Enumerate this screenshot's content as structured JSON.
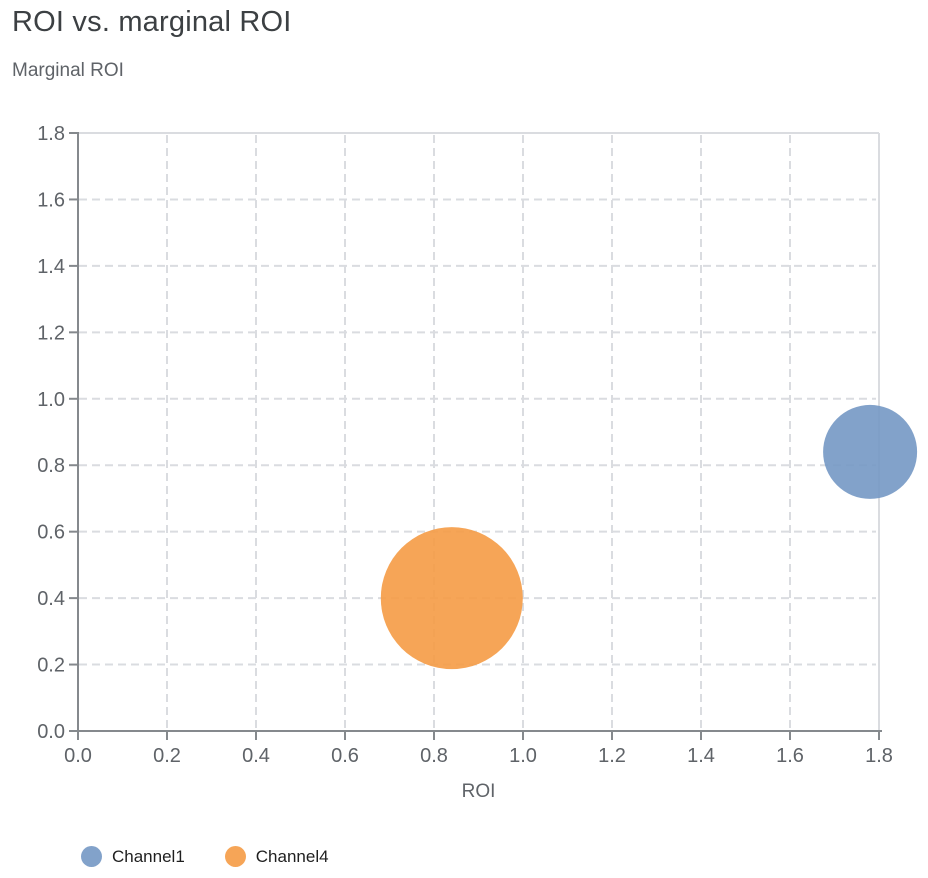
{
  "header": {
    "title": "ROI vs. marginal ROI"
  },
  "chart_data": {
    "type": "bubble",
    "title": "ROI vs. marginal ROI",
    "xlabel": "ROI",
    "ylabel": "Marginal ROI",
    "xlim": [
      0,
      1.8
    ],
    "ylim": [
      0,
      1.8
    ],
    "ticks": {
      "values": [
        0,
        0.2,
        0.4,
        0.6,
        0.8,
        1.0,
        1.2,
        1.4,
        1.6,
        1.8
      ],
      "labels": [
        "0.0",
        "0.2",
        "0.4",
        "0.6",
        "0.8",
        "1.0",
        "1.2",
        "1.4",
        "1.6",
        "1.8"
      ]
    },
    "grid": {
      "style": "dashed",
      "color": "#dadce0",
      "dash": "8 5"
    },
    "axis_color": "#85898d",
    "text_color": "#5f6368",
    "title_color": "#3c4043",
    "legend_text_color": "#1f1f1f",
    "series": [
      {
        "name": "Channel1",
        "color": "#7498C4",
        "x": 1.78,
        "y": 0.84,
        "radius_px": 47,
        "fill_opacity": 0.9
      },
      {
        "name": "Channel4",
        "color": "#F59B45",
        "x": 0.84,
        "y": 0.4,
        "radius_px": 71,
        "fill_opacity": 0.9
      }
    ],
    "legend": {
      "position": "bottom-left",
      "items": [
        "Channel1",
        "Channel4"
      ]
    }
  }
}
